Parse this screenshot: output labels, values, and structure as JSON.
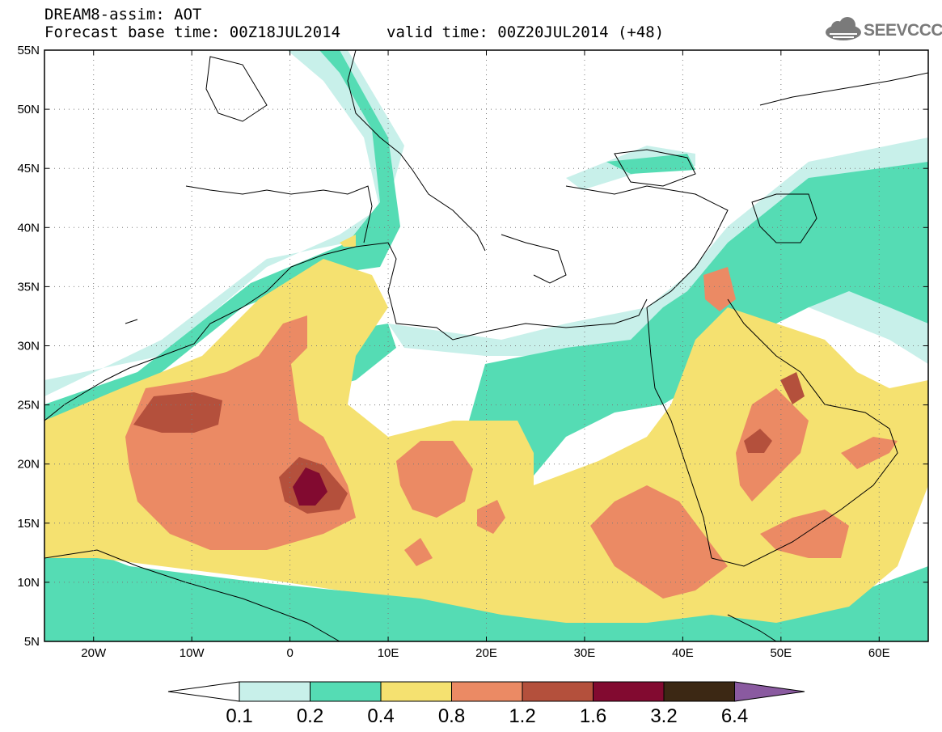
{
  "header": {
    "line1": "DREAM8-assim: AOT",
    "line2": "Forecast base time: 00Z18JUL2014",
    "line3": "valid time: 00Z20JUL2014 (+48)"
  },
  "logo": {
    "text": "SEEVCCC",
    "icon": "cloud-icon",
    "color": "#7a7a7a"
  },
  "map": {
    "lat_labels": [
      "55N",
      "50N",
      "45N",
      "40N",
      "35N",
      "30N",
      "25N",
      "20N",
      "15N",
      "10N",
      "5N"
    ],
    "lon_labels": [
      "20W",
      "10W",
      "0",
      "10E",
      "20E",
      "30E",
      "40E",
      "50E",
      "60E"
    ],
    "extent": {
      "lon": [
        -25,
        65
      ],
      "lat": [
        5,
        55
      ]
    },
    "grid": "dotted"
  },
  "colorbar": {
    "labels": [
      "0.1",
      "0.2",
      "0.4",
      "0.8",
      "1.2",
      "1.6",
      "3.2",
      "6.4"
    ],
    "colors": [
      "#c8f0ea",
      "#55dcb4",
      "#f5e170",
      "#eb8a64",
      "#b4503c",
      "#820a30",
      "#3c2814"
    ],
    "under_color": "#ffffff",
    "over_color": "#8a5aa0"
  }
}
